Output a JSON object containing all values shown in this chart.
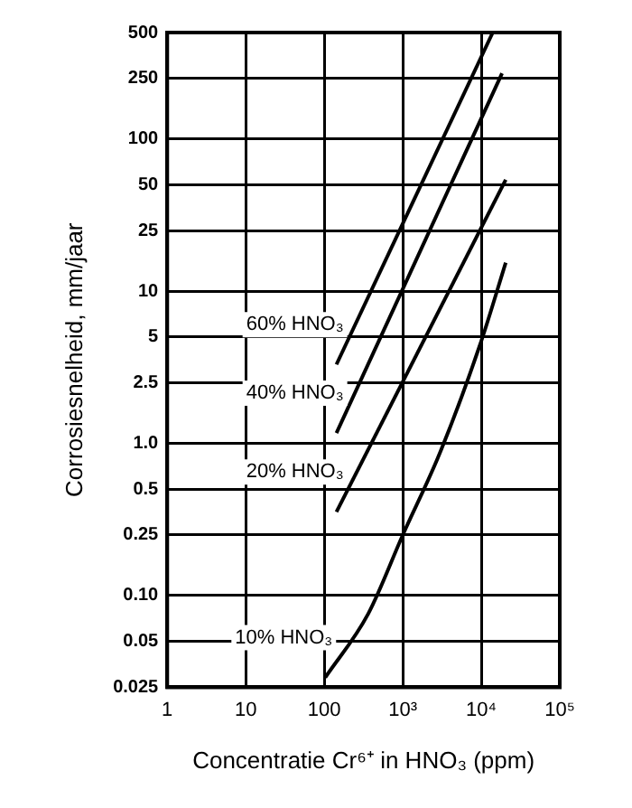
{
  "chart_data": {
    "type": "line",
    "xlabel": "Concentratie Cr⁶⁺ in HNO₃ (ppm)",
    "ylabel": "Corrosiesnelheid, mm/jaar",
    "log": "xy",
    "grid": true,
    "legend": false,
    "marker": "none",
    "line_style": "solid",
    "xlim": [
      1,
      100000
    ],
    "xticks": [
      1,
      10,
      100,
      {
        "value": 1000,
        "label": "10³"
      },
      {
        "value": 10000,
        "label": "10⁴"
      },
      {
        "value": 100000,
        "label": "10⁵"
      }
    ],
    "ylim": [
      0.025,
      500
    ],
    "yticks": [
      0.025,
      0.05,
      {
        "value": 0.1,
        "label": "0.10"
      },
      0.25,
      0.5,
      {
        "value": 1,
        "label": "1.0"
      },
      2.5,
      5,
      10,
      25,
      50,
      100,
      250,
      500
    ],
    "series": [
      {
        "name": "60% HNO₃",
        "color": "#000000",
        "x": [
          143,
          14000
        ],
        "values": [
          3.3,
          500
        ]
      },
      {
        "name": "40% HNO₃",
        "color": "#000000",
        "x": [
          143,
          18400
        ],
        "values": [
          1.17,
          270
        ]
      },
      {
        "name": "20% HNO₃",
        "color": "#000000",
        "x": [
          143,
          20500
        ],
        "values": [
          0.355,
          54
        ]
      },
      {
        "name": "10% HNO₃",
        "color": "#000000",
        "x": [
          103,
          363,
          1000,
          3040,
          10000,
          20500
        ],
        "values": [
          0.029,
          0.076,
          0.25,
          0.89,
          4.7,
          15.4
        ]
      }
    ]
  }
}
